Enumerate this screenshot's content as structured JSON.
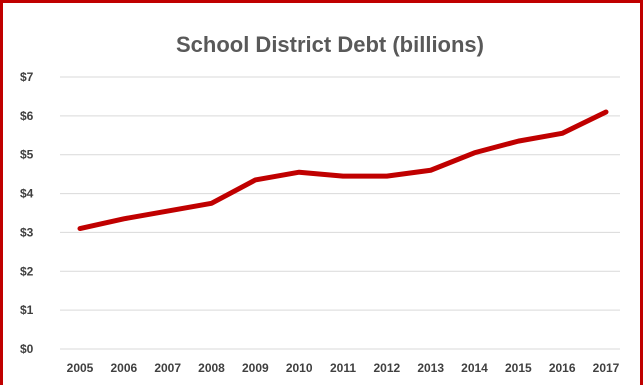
{
  "chart_data": {
    "type": "line",
    "title": "School District Debt (billions)",
    "xlabel": "",
    "ylabel": "",
    "categories": [
      "2005",
      "2006",
      "2007",
      "2008",
      "2009",
      "2010",
      "2011",
      "2012",
      "2013",
      "2014",
      "2015",
      "2016",
      "2017"
    ],
    "series": [
      {
        "values": [
          3.1,
          3.35,
          3.55,
          3.75,
          4.35,
          4.55,
          4.45,
          4.45,
          4.6,
          5.05,
          5.35,
          5.55,
          6.1
        ]
      }
    ],
    "ylim": [
      0,
      7
    ],
    "yticks": [
      0,
      1,
      2,
      3,
      4,
      5,
      6,
      7
    ],
    "ytick_labels": [
      "$0",
      "$1",
      "$2",
      "$3",
      "$4",
      "$5",
      "$6",
      "$7"
    ],
    "grid": true,
    "legend": "none",
    "colors": {
      "line": "#c00000",
      "frame": "#c00000",
      "grid": "#d9d9d9"
    }
  }
}
